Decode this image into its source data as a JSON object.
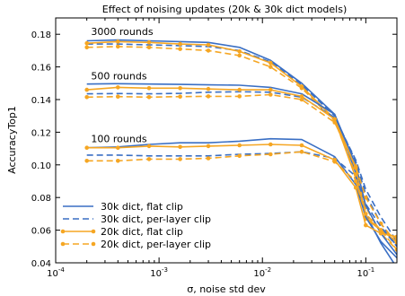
{
  "chart_data": {
    "type": "line",
    "title": "Effect of noising updates (20k & 30k dict models)",
    "xlabel": "σ, noise std dev",
    "ylabel": "AccuracyTop1",
    "x_scale": "log",
    "xlim": [
      0.0001,
      0.2
    ],
    "ylim": [
      0.04,
      0.19
    ],
    "x_ticks": [
      {
        "value": 0.0001,
        "base": "10",
        "exp": "-4"
      },
      {
        "value": 0.001,
        "base": "10",
        "exp": "-3"
      },
      {
        "value": 0.01,
        "base": "10",
        "exp": "-2"
      },
      {
        "value": 0.1,
        "base": "10",
        "exp": "-1"
      }
    ],
    "y_ticks": [
      0.04,
      0.06,
      0.08,
      0.1,
      0.12,
      0.14,
      0.16,
      0.18
    ],
    "y_tick_labels": [
      "0.04",
      "0.06",
      "0.08",
      "0.10",
      "0.12",
      "0.14",
      "0.16",
      "0.18"
    ],
    "grid": false,
    "legend_position": "lower-left",
    "x": [
      0.0002,
      0.0004,
      0.0008,
      0.0016,
      0.003,
      0.006,
      0.012,
      0.024,
      0.05,
      0.08,
      0.1,
      0.14,
      0.2
    ],
    "annotations": [
      {
        "text": "3000 rounds",
        "x": 0.00022,
        "y": 0.1795
      },
      {
        "text": "500 rounds",
        "x": 0.00022,
        "y": 0.1525
      },
      {
        "text": "100 rounds",
        "x": 0.00022,
        "y": 0.114
      }
    ],
    "series_styles": [
      {
        "name": "30k dict, flat clip",
        "color": "#3a6fc4",
        "dash": "",
        "marker": false
      },
      {
        "name": "30k dict, per-layer clip",
        "color": "#3a6fc4",
        "dash": "7,4",
        "marker": false
      },
      {
        "name": "20k dict, flat clip",
        "color": "#f5a623",
        "dash": "",
        "marker": true
      },
      {
        "name": "20k dict, per-layer clip",
        "color": "#f5a623",
        "dash": "7,4",
        "marker": true
      }
    ],
    "series": [
      {
        "name": "30k dict, flat clip",
        "group": "3000 rounds",
        "style": 0,
        "values": [
          0.176,
          0.1765,
          0.176,
          0.1755,
          0.175,
          0.172,
          0.164,
          0.15,
          0.131,
          0.095,
          0.07,
          0.052,
          0.037
        ]
      },
      {
        "name": "30k dict, per-layer clip",
        "group": "3000 rounds",
        "style": 1,
        "values": [
          0.174,
          0.174,
          0.1735,
          0.173,
          0.1725,
          0.17,
          0.163,
          0.149,
          0.13,
          0.102,
          0.082,
          0.064,
          0.05
        ]
      },
      {
        "name": "20k dict, flat clip",
        "group": "3000 rounds",
        "style": 2,
        "values": [
          0.1745,
          0.1755,
          0.175,
          0.174,
          0.1735,
          0.1695,
          0.1625,
          0.148,
          0.128,
          0.092,
          0.067,
          0.06,
          0.053
        ]
      },
      {
        "name": "20k dict, per-layer clip",
        "group": "3000 rounds",
        "style": 3,
        "values": [
          0.172,
          0.1725,
          0.172,
          0.171,
          0.17,
          0.167,
          0.16,
          0.147,
          0.127,
          0.094,
          0.074,
          0.058,
          0.048
        ]
      },
      {
        "name": "30k dict, flat clip",
        "group": "500 rounds",
        "style": 0,
        "values": [
          0.1495,
          0.1497,
          0.1495,
          0.1493,
          0.149,
          0.1488,
          0.1475,
          0.1435,
          0.131,
          0.1,
          0.075,
          0.058,
          0.045
        ]
      },
      {
        "name": "30k dict, per-layer clip",
        "group": "500 rounds",
        "style": 1,
        "values": [
          0.1435,
          0.1437,
          0.1435,
          0.1438,
          0.1445,
          0.1448,
          0.1445,
          0.1415,
          0.129,
          0.103,
          0.085,
          0.068,
          0.053
        ]
      },
      {
        "name": "20k dict, flat clip",
        "group": "500 rounds",
        "style": 2,
        "values": [
          0.146,
          0.1475,
          0.147,
          0.147,
          0.1465,
          0.146,
          0.146,
          0.142,
          0.128,
          0.098,
          0.068,
          0.06,
          0.055
        ]
      },
      {
        "name": "20k dict, per-layer clip",
        "group": "500 rounds",
        "style": 3,
        "values": [
          0.1415,
          0.1418,
          0.1415,
          0.1418,
          0.142,
          0.142,
          0.143,
          0.14,
          0.126,
          0.099,
          0.08,
          0.064,
          0.052
        ]
      },
      {
        "name": "30k dict, flat clip",
        "group": "100 rounds",
        "style": 0,
        "values": [
          0.1105,
          0.111,
          0.1125,
          0.1135,
          0.1135,
          0.1145,
          0.116,
          0.1155,
          0.105,
          0.088,
          0.068,
          0.053,
          0.043
        ]
      },
      {
        "name": "30k dict, per-layer clip",
        "group": "100 rounds",
        "style": 1,
        "values": [
          0.106,
          0.106,
          0.1055,
          0.1055,
          0.1055,
          0.1065,
          0.107,
          0.108,
          0.104,
          0.093,
          0.076,
          0.062,
          0.05
        ]
      },
      {
        "name": "20k dict, flat clip",
        "group": "100 rounds",
        "style": 2,
        "values": [
          0.1105,
          0.1105,
          0.1115,
          0.111,
          0.1115,
          0.112,
          0.1125,
          0.112,
          0.103,
          0.086,
          0.063,
          0.058,
          0.056
        ]
      },
      {
        "name": "20k dict, per-layer clip",
        "group": "100 rounds",
        "style": 3,
        "values": [
          0.1025,
          0.1025,
          0.1035,
          0.1035,
          0.104,
          0.1055,
          0.1065,
          0.108,
          0.102,
          0.09,
          0.07,
          0.06,
          0.048
        ]
      }
    ]
  }
}
